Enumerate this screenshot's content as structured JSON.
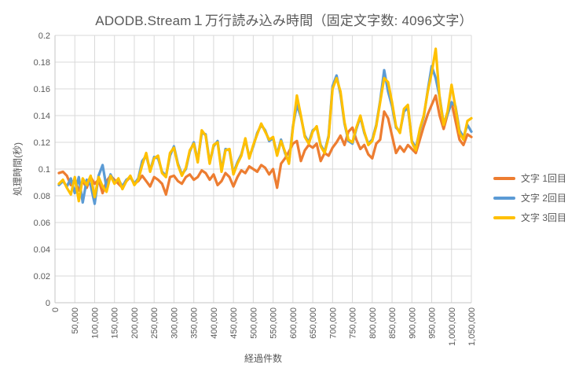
{
  "chart_data": {
    "type": "line",
    "title": "ADODB.Stream１万行読み込み時間（固定文字数: 4096文字）",
    "xlabel": "経過件数",
    "ylabel": "処理時間(秒)",
    "ylim": [
      0,
      0.2
    ],
    "xlim": [
      0,
      1050000
    ],
    "x_step": 10000,
    "y_tick_step": 0.02,
    "x_tick_step": 50000,
    "grid": true,
    "legend_position": "right",
    "y_tick_labels": [
      "0",
      "0.02",
      "0.04",
      "0.06",
      "0.08",
      "0.1",
      "0.12",
      "0.14",
      "0.16",
      "0.18",
      "0.2"
    ],
    "x_tick_labels": [
      "0",
      "50,000",
      "100,000",
      "150,000",
      "200,000",
      "250,000",
      "300,000",
      "350,000",
      "400,000",
      "450,000",
      "500,000",
      "550,000",
      "600,000",
      "650,000",
      "700,000",
      "750,000",
      "800,000",
      "850,000",
      "900,000",
      "950,000",
      "1,000,000",
      "1,050,000"
    ],
    "colors": {
      "grid": "#D9D9D9",
      "axis": "#C6C6C6",
      "text": "#595959"
    },
    "series": [
      {
        "name": "文字 1回目",
        "color": "#ED7D31",
        "values": [
          0.097,
          0.098,
          0.095,
          0.088,
          0.092,
          0.084,
          0.091,
          0.086,
          0.094,
          0.089,
          0.092,
          0.082,
          0.091,
          0.095,
          0.092,
          0.089,
          0.086,
          0.091,
          0.094,
          0.089,
          0.091,
          0.095,
          0.091,
          0.087,
          0.094,
          0.092,
          0.089,
          0.081,
          0.094,
          0.095,
          0.091,
          0.089,
          0.094,
          0.096,
          0.092,
          0.094,
          0.099,
          0.097,
          0.092,
          0.096,
          0.088,
          0.091,
          0.097,
          0.094,
          0.087,
          0.094,
          0.099,
          0.097,
          0.102,
          0.1,
          0.098,
          0.103,
          0.101,
          0.096,
          0.1,
          0.086,
          0.104,
          0.108,
          0.113,
          0.119,
          0.121,
          0.106,
          0.114,
          0.118,
          0.116,
          0.119,
          0.106,
          0.112,
          0.11,
          0.116,
          0.12,
          0.125,
          0.118,
          0.128,
          0.131,
          0.122,
          0.115,
          0.118,
          0.111,
          0.108,
          0.119,
          0.122,
          0.143,
          0.138,
          0.125,
          0.112,
          0.117,
          0.113,
          0.118,
          0.115,
          0.112,
          0.122,
          0.132,
          0.141,
          0.148,
          0.155,
          0.14,
          0.13,
          0.141,
          0.15,
          0.136,
          0.122,
          0.118,
          0.126,
          0.124
        ]
      },
      {
        "name": "文字 2回目",
        "color": "#5B9BD5",
        "values": [
          0.088,
          0.091,
          0.087,
          0.093,
          0.082,
          0.094,
          0.075,
          0.092,
          0.088,
          0.074,
          0.095,
          0.103,
          0.086,
          0.096,
          0.09,
          0.092,
          0.087,
          0.092,
          0.094,
          0.089,
          0.093,
          0.106,
          0.11,
          0.099,
          0.109,
          0.108,
          0.098,
          0.095,
          0.11,
          0.117,
          0.104,
          0.096,
          0.1,
          0.113,
          0.12,
          0.106,
          0.127,
          0.126,
          0.105,
          0.117,
          0.121,
          0.099,
          0.115,
          0.114,
          0.097,
          0.105,
          0.111,
          0.122,
          0.109,
          0.117,
          0.127,
          0.133,
          0.129,
          0.121,
          0.123,
          0.111,
          0.122,
          0.112,
          0.105,
          0.132,
          0.148,
          0.139,
          0.125,
          0.12,
          0.129,
          0.131,
          0.118,
          0.113,
          0.125,
          0.162,
          0.17,
          0.156,
          0.134,
          0.121,
          0.119,
          0.13,
          0.139,
          0.127,
          0.119,
          0.122,
          0.133,
          0.151,
          0.174,
          0.158,
          0.147,
          0.131,
          0.128,
          0.143,
          0.146,
          0.121,
          0.116,
          0.129,
          0.139,
          0.159,
          0.177,
          0.168,
          0.154,
          0.134,
          0.141,
          0.15,
          0.147,
          0.129,
          0.124,
          0.133,
          0.128
        ]
      },
      {
        "name": "文字 3回目",
        "color": "#FFC000",
        "values": [
          0.089,
          0.092,
          0.086,
          0.081,
          0.094,
          0.076,
          0.093,
          0.088,
          0.095,
          0.079,
          0.094,
          0.087,
          0.083,
          0.095,
          0.089,
          0.093,
          0.085,
          0.091,
          0.095,
          0.088,
          0.092,
          0.103,
          0.112,
          0.098,
          0.108,
          0.11,
          0.097,
          0.094,
          0.112,
          0.116,
          0.103,
          0.095,
          0.101,
          0.114,
          0.119,
          0.105,
          0.129,
          0.125,
          0.104,
          0.118,
          0.12,
          0.098,
          0.114,
          0.115,
          0.096,
          0.104,
          0.11,
          0.123,
          0.108,
          0.118,
          0.126,
          0.134,
          0.128,
          0.122,
          0.124,
          0.11,
          0.121,
          0.113,
          0.104,
          0.131,
          0.155,
          0.14,
          0.124,
          0.119,
          0.128,
          0.132,
          0.117,
          0.112,
          0.124,
          0.16,
          0.168,
          0.158,
          0.135,
          0.122,
          0.12,
          0.131,
          0.14,
          0.128,
          0.118,
          0.121,
          0.132,
          0.15,
          0.168,
          0.165,
          0.15,
          0.132,
          0.127,
          0.145,
          0.148,
          0.12,
          0.114,
          0.13,
          0.14,
          0.158,
          0.172,
          0.19,
          0.153,
          0.133,
          0.143,
          0.163,
          0.146,
          0.127,
          0.122,
          0.136,
          0.138
        ]
      }
    ]
  }
}
